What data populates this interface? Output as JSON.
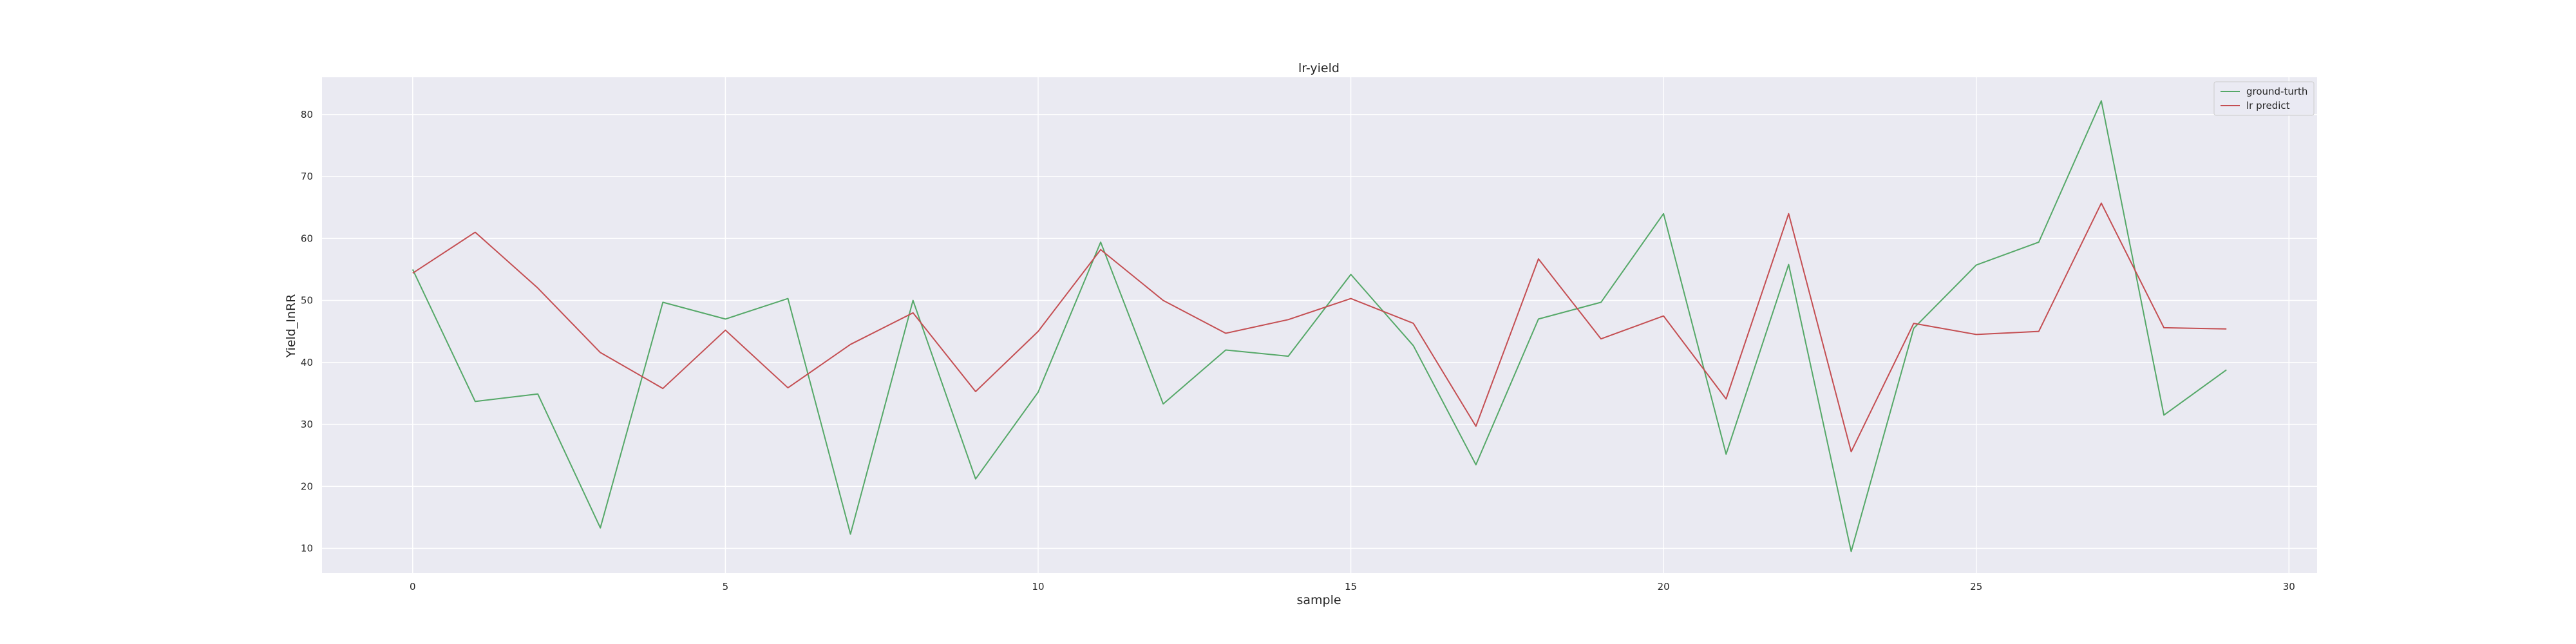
{
  "chart_data": {
    "type": "line",
    "title": "lr-yield",
    "xlabel": "sample",
    "ylabel": "Yield_InRR",
    "xlim": [
      -1.45,
      30.45
    ],
    "ylim": [
      6,
      86
    ],
    "xticks": [
      0,
      5,
      10,
      15,
      20,
      25,
      30
    ],
    "yticks": [
      10,
      20,
      30,
      40,
      50,
      60,
      70,
      80
    ],
    "grid": true,
    "legend_position": "top-right",
    "x": [
      0,
      1,
      2,
      3,
      4,
      5,
      6,
      7,
      8,
      9,
      10,
      11,
      12,
      13,
      14,
      15,
      16,
      17,
      18,
      19,
      20,
      21,
      22,
      23,
      24,
      25,
      26,
      27,
      28,
      29
    ],
    "series": [
      {
        "name": "ground-turth",
        "color": "#55a868",
        "values": [
          55.0,
          33.7,
          34.9,
          13.3,
          49.7,
          47.0,
          50.3,
          12.3,
          50.0,
          21.2,
          35.2,
          59.4,
          33.3,
          42.0,
          41.0,
          54.2,
          42.7,
          23.5,
          47.0,
          49.7,
          64.0,
          25.2,
          55.8,
          9.5,
          45.5,
          55.7,
          59.4,
          82.2,
          31.5,
          38.8
        ]
      },
      {
        "name": "lr predict",
        "color": "#c44e52",
        "values": [
          54.4,
          61.0,
          52.0,
          41.6,
          35.8,
          45.2,
          35.9,
          42.9,
          48.0,
          35.3,
          45.0,
          58.2,
          50.0,
          44.7,
          46.9,
          50.3,
          46.3,
          29.7,
          56.7,
          43.8,
          47.5,
          34.1,
          64.0,
          25.6,
          46.3,
          44.5,
          45.0,
          65.7,
          45.6,
          45.4
        ]
      }
    ]
  }
}
